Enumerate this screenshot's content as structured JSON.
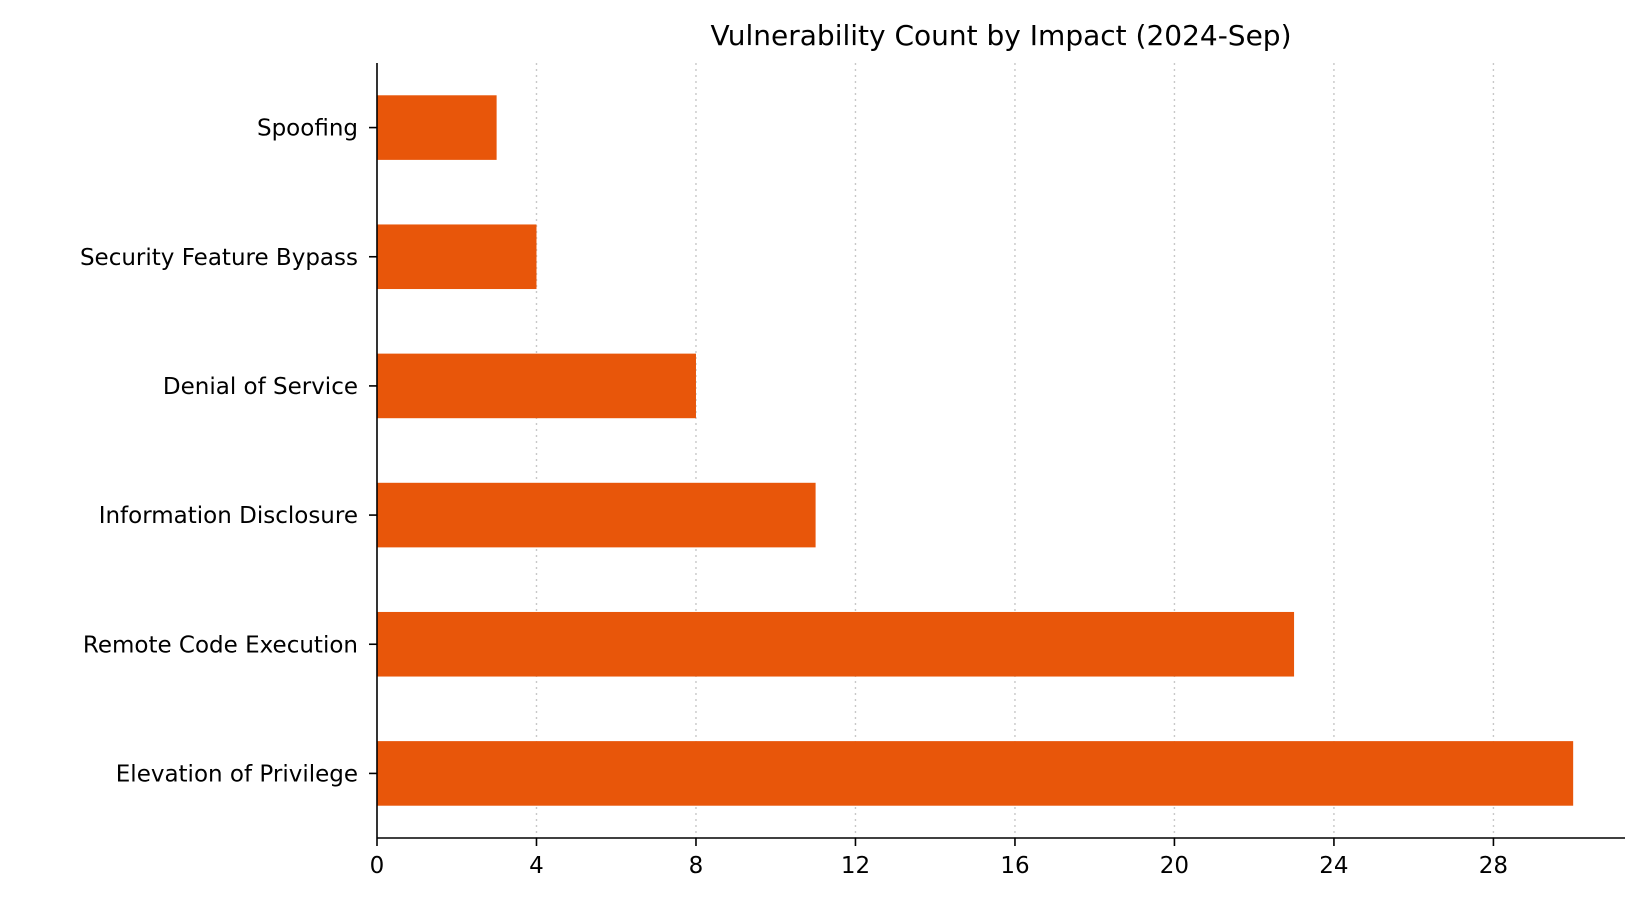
{
  "chart_data": {
    "type": "bar",
    "orientation": "horizontal",
    "title": "Vulnerability Count by Impact (2024-Sep)",
    "xlabel": "",
    "ylabel": "",
    "categories": [
      "Elevation of Privilege",
      "Remote Code Execution",
      "Information Disclosure",
      "Denial of Service",
      "Security Feature Bypass",
      "Spoofing"
    ],
    "values": [
      30,
      23,
      11,
      8,
      4,
      3
    ],
    "xlim": [
      0,
      31.3
    ],
    "xticks": [
      0,
      4,
      8,
      12,
      16,
      20,
      24,
      28
    ],
    "bar_color": "#e8560a",
    "grid": "vertical dotted",
    "legend": "none"
  }
}
